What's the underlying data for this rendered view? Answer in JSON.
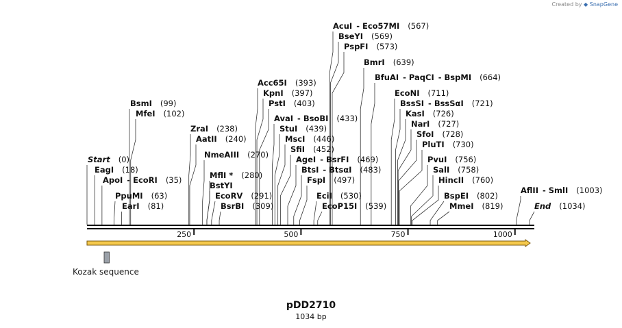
{
  "credit": {
    "prefix": "Created by",
    "brand": "SnapGene"
  },
  "plasmid": {
    "name": "pDD2710",
    "length_label": "1034 bp",
    "length": 1034
  },
  "ruler": [
    250,
    500,
    750,
    1000
  ],
  "feature": {
    "label": "Kozak sequence",
    "start": 40,
    "end": 52,
    "color": "#9aa0a8"
  },
  "orf": {
    "start": 0,
    "end": 1034,
    "fill": "#f5c94c",
    "stroke": "#7a5a12",
    "direction": "forward"
  },
  "sites": [
    {
      "name": "Start",
      "pos": 0,
      "num": "(0)",
      "italic": true
    },
    {
      "name": "EagI",
      "pos": 18,
      "num": "(18)"
    },
    {
      "name": "ApoI",
      "alias": "EcoRI",
      "pos": 35,
      "num": "(35)"
    },
    {
      "name": "PpuMI",
      "pos": 63,
      "num": "(63)"
    },
    {
      "name": "EarI",
      "pos": 81,
      "num": "(81)"
    },
    {
      "name": "BsmI",
      "pos": 99,
      "num": "(99)"
    },
    {
      "name": "MfeI",
      "pos": 102,
      "num": "(102)"
    },
    {
      "name": "ZraI",
      "pos": 238,
      "num": "(238)"
    },
    {
      "name": "AatII",
      "pos": 240,
      "num": "(240)"
    },
    {
      "name": "NmeAIII",
      "pos": 270,
      "num": "(270)"
    },
    {
      "name": "MflI *",
      "pos": 280,
      "num": "(280)"
    },
    {
      "name": "BstYI",
      "pos": 280,
      "num": ""
    },
    {
      "name": "EcoRV",
      "pos": 291,
      "num": "(291)"
    },
    {
      "name": "BsrBI",
      "pos": 309,
      "num": "(309)"
    },
    {
      "name": "Acc65I",
      "pos": 393,
      "num": "(393)"
    },
    {
      "name": "KpnI",
      "pos": 397,
      "num": "(397)"
    },
    {
      "name": "PstI",
      "pos": 403,
      "num": "(403)"
    },
    {
      "name": "AvaI",
      "alias": "BsoBI",
      "pos": 433,
      "num": "(433)"
    },
    {
      "name": "StuI",
      "pos": 439,
      "num": "(439)"
    },
    {
      "name": "MscI",
      "pos": 446,
      "num": "(446)"
    },
    {
      "name": "SfiI",
      "pos": 452,
      "num": "(452)"
    },
    {
      "name": "AgeI",
      "alias": "BsrFI",
      "pos": 469,
      "num": "(469)"
    },
    {
      "name": "BtsI",
      "alias": "BtsαI",
      "pos": 483,
      "num": "(483)"
    },
    {
      "name": "FspI",
      "pos": 497,
      "num": "(497)"
    },
    {
      "name": "EciI",
      "pos": 530,
      "num": "(530)"
    },
    {
      "name": "EcoP15I",
      "pos": 539,
      "num": "(539)"
    },
    {
      "name": "AcuI",
      "alias": "Eco57MI",
      "pos": 567,
      "num": "(567)"
    },
    {
      "name": "BseYI",
      "pos": 569,
      "num": "(569)"
    },
    {
      "name": "PspFI",
      "pos": 573,
      "num": "(573)"
    },
    {
      "name": "BmrI",
      "pos": 639,
      "num": "(639)"
    },
    {
      "name": "BfuAI",
      "alias": "PaqCI",
      "alias2": "BspMI",
      "pos": 664,
      "num": "(664)"
    },
    {
      "name": "EcoNI",
      "pos": 711,
      "num": "(711)"
    },
    {
      "name": "BssSI",
      "alias": "BssSαI",
      "pos": 721,
      "num": "(721)"
    },
    {
      "name": "KasI",
      "pos": 726,
      "num": "(726)"
    },
    {
      "name": "NarI",
      "pos": 727,
      "num": "(727)"
    },
    {
      "name": "SfoI",
      "pos": 728,
      "num": "(728)"
    },
    {
      "name": "PluTI",
      "pos": 730,
      "num": "(730)"
    },
    {
      "name": "PvuI",
      "pos": 756,
      "num": "(756)"
    },
    {
      "name": "SalI",
      "pos": 758,
      "num": "(758)"
    },
    {
      "name": "HincII",
      "pos": 760,
      "num": "(760)"
    },
    {
      "name": "BspEI",
      "pos": 802,
      "num": "(802)"
    },
    {
      "name": "MmeI",
      "pos": 819,
      "num": "(819)"
    },
    {
      "name": "AflII",
      "alias": "SmlI",
      "pos": 1003,
      "num": "(1003)"
    },
    {
      "name": "End",
      "pos": 1034,
      "num": "(1034)",
      "italic": true
    }
  ]
}
